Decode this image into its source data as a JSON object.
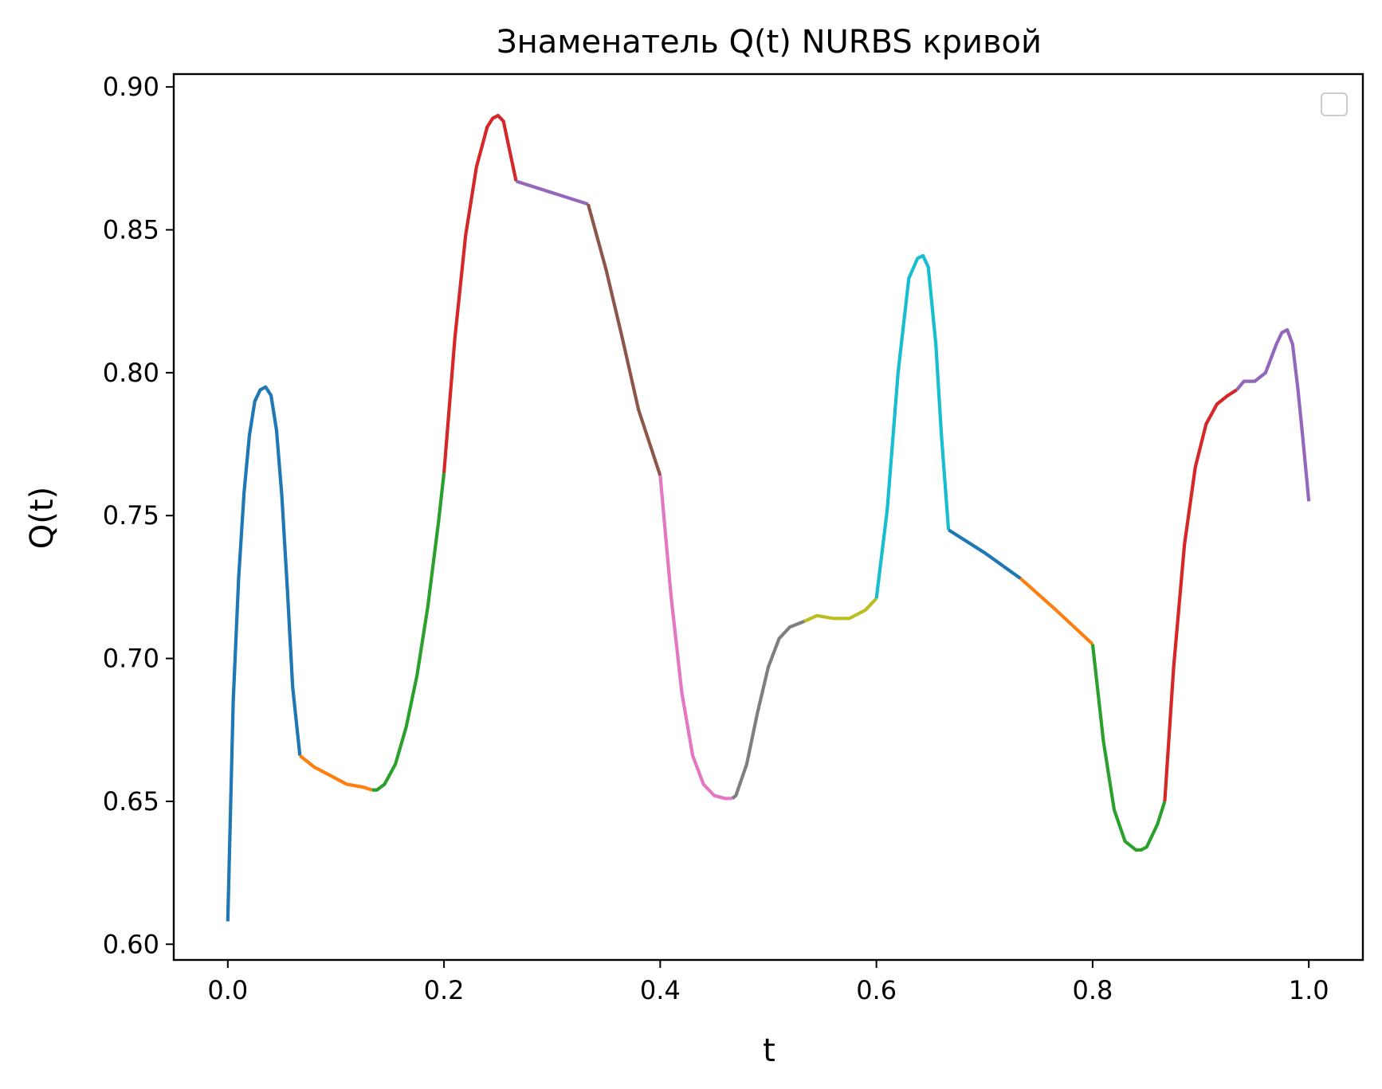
{
  "chart_data": {
    "type": "line",
    "title": "Знаменатель Q(t) NURBS кривой",
    "xlabel": "t",
    "ylabel": "Q(t)",
    "xlim": [
      -0.05,
      1.05
    ],
    "ylim": [
      0.5945,
      0.9045
    ],
    "xticks": [
      "0.0",
      "0.2",
      "0.4",
      "0.6",
      "0.8",
      "1.0"
    ],
    "xtick_values": [
      0.0,
      0.2,
      0.4,
      0.6,
      0.8,
      1.0
    ],
    "yticks": [
      "0.60",
      "0.65",
      "0.70",
      "0.75",
      "0.80",
      "0.85",
      "0.90"
    ],
    "ytick_values": [
      0.6,
      0.65,
      0.7,
      0.75,
      0.8,
      0.85,
      0.9
    ],
    "grid": false,
    "legend": {
      "placement": "top-right",
      "entries": []
    },
    "series": [
      {
        "color": "#1f77b4",
        "x": [
          0.0,
          0.005,
          0.01,
          0.015,
          0.02,
          0.025,
          0.03,
          0.035,
          0.04,
          0.045,
          0.05,
          0.055,
          0.06,
          0.0667
        ],
        "y": [
          0.608,
          0.685,
          0.728,
          0.758,
          0.778,
          0.79,
          0.794,
          0.795,
          0.792,
          0.78,
          0.757,
          0.725,
          0.69,
          0.666
        ]
      },
      {
        "color": "#ff7f0e",
        "x": [
          0.0667,
          0.08,
          0.095,
          0.11,
          0.125,
          0.1333
        ],
        "y": [
          0.666,
          0.662,
          0.659,
          0.656,
          0.655,
          0.654
        ]
      },
      {
        "color": "#2ca02c",
        "x": [
          0.1333,
          0.138,
          0.145,
          0.155,
          0.165,
          0.175,
          0.185,
          0.195,
          0.2
        ],
        "y": [
          0.654,
          0.654,
          0.656,
          0.663,
          0.676,
          0.694,
          0.718,
          0.748,
          0.765
        ]
      },
      {
        "color": "#d62728",
        "x": [
          0.2,
          0.21,
          0.22,
          0.23,
          0.24,
          0.245,
          0.25,
          0.255,
          0.26,
          0.2667
        ],
        "y": [
          0.765,
          0.812,
          0.848,
          0.872,
          0.886,
          0.889,
          0.89,
          0.888,
          0.879,
          0.867
        ]
      },
      {
        "color": "#9467bd",
        "x": [
          0.2667,
          0.3,
          0.3333
        ],
        "y": [
          0.867,
          0.863,
          0.859
        ]
      },
      {
        "color": "#8c564b",
        "x": [
          0.3333,
          0.35,
          0.365,
          0.38,
          0.4
        ],
        "y": [
          0.859,
          0.836,
          0.812,
          0.787,
          0.764
        ]
      },
      {
        "color": "#e377c2",
        "x": [
          0.4,
          0.41,
          0.42,
          0.43,
          0.44,
          0.45,
          0.46,
          0.4667
        ],
        "y": [
          0.764,
          0.722,
          0.688,
          0.666,
          0.656,
          0.652,
          0.651,
          0.651
        ]
      },
      {
        "color": "#7f7f7f",
        "x": [
          0.4667,
          0.47,
          0.48,
          0.49,
          0.5,
          0.51,
          0.52,
          0.5333
        ],
        "y": [
          0.651,
          0.652,
          0.663,
          0.681,
          0.697,
          0.707,
          0.711,
          0.713
        ]
      },
      {
        "color": "#bcbd22",
        "x": [
          0.5333,
          0.545,
          0.56,
          0.575,
          0.59,
          0.6
        ],
        "y": [
          0.713,
          0.715,
          0.714,
          0.714,
          0.717,
          0.721
        ]
      },
      {
        "color": "#17becf",
        "x": [
          0.6,
          0.61,
          0.62,
          0.63,
          0.638,
          0.643,
          0.648,
          0.655,
          0.66,
          0.6667
        ],
        "y": [
          0.721,
          0.752,
          0.8,
          0.833,
          0.84,
          0.841,
          0.837,
          0.81,
          0.779,
          0.745
        ]
      },
      {
        "color": "#1f77b4",
        "x": [
          0.6667,
          0.7,
          0.7333
        ],
        "y": [
          0.745,
          0.737,
          0.728
        ]
      },
      {
        "color": "#ff7f0e",
        "x": [
          0.7333,
          0.766,
          0.8
        ],
        "y": [
          0.728,
          0.717,
          0.705
        ]
      },
      {
        "color": "#2ca02c",
        "x": [
          0.8,
          0.81,
          0.82,
          0.83,
          0.84,
          0.845,
          0.85,
          0.86,
          0.8667
        ],
        "y": [
          0.705,
          0.671,
          0.647,
          0.636,
          0.633,
          0.633,
          0.634,
          0.642,
          0.65
        ]
      },
      {
        "color": "#d62728",
        "x": [
          0.8667,
          0.875,
          0.885,
          0.895,
          0.905,
          0.915,
          0.925,
          0.9333
        ],
        "y": [
          0.65,
          0.697,
          0.74,
          0.767,
          0.782,
          0.789,
          0.792,
          0.794
        ]
      },
      {
        "color": "#9467bd",
        "x": [
          0.9333,
          0.94,
          0.95,
          0.96,
          0.97,
          0.975,
          0.98,
          0.985,
          0.99,
          0.995,
          1.0
        ],
        "y": [
          0.794,
          0.797,
          0.797,
          0.8,
          0.81,
          0.814,
          0.815,
          0.81,
          0.794,
          0.775,
          0.755
        ]
      }
    ]
  }
}
